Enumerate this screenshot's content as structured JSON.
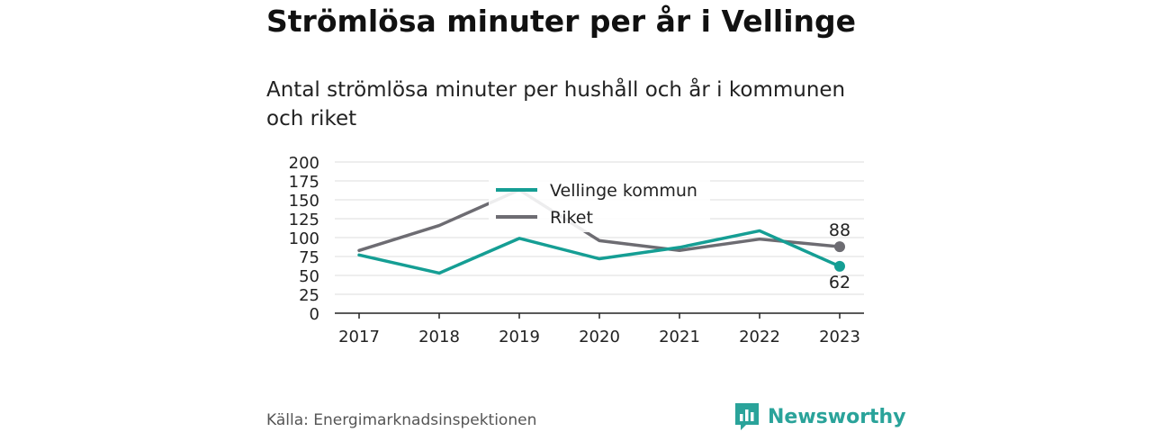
{
  "title": "Strömlösa minuter per år i Vellinge",
  "subtitle": "Antal strömlösa minuter per hushåll och år i kommunen och riket",
  "source": "Källa: Energimarknadsinspektionen",
  "brand": {
    "name": "Newsworthy",
    "icon": "bar-chart-speech-bubble-icon",
    "color": "#2aa39a"
  },
  "chart_data": {
    "type": "line",
    "x": [
      "2017",
      "2018",
      "2019",
      "2020",
      "2021",
      "2022",
      "2023"
    ],
    "series": [
      {
        "name": "Vellinge kommun",
        "color": "#159e94",
        "values": [
          77,
          53,
          99,
          72,
          87,
          109,
          62
        ],
        "end_label": "62"
      },
      {
        "name": "Riket",
        "color": "#6d6c72",
        "values": [
          83,
          116,
          163,
          96,
          83,
          98,
          88
        ],
        "end_label": "88"
      }
    ],
    "yticks": [
      0,
      25,
      50,
      75,
      100,
      125,
      150,
      175,
      200
    ],
    "ylim": [
      0,
      200
    ],
    "grid": true,
    "legend": "top-center"
  }
}
